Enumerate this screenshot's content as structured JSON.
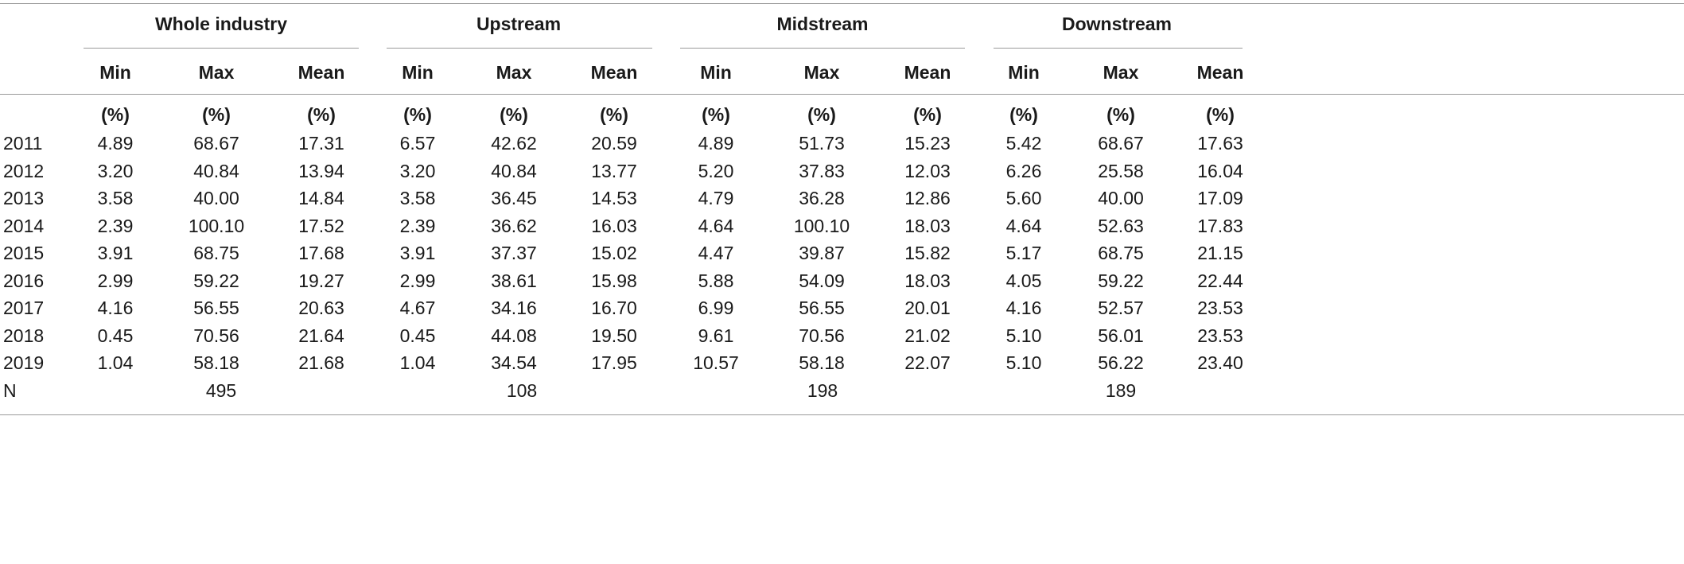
{
  "groups": [
    "Whole industry",
    "Upstream",
    "Midstream",
    "Downstream"
  ],
  "subheaders": [
    "Min",
    "Max",
    "Mean"
  ],
  "unit": "(%)",
  "rows": [
    {
      "label": "2011",
      "values": [
        "4.89",
        "68.67",
        "17.31",
        "6.57",
        "42.62",
        "20.59",
        "4.89",
        "51.73",
        "15.23",
        "5.42",
        "68.67",
        "17.63"
      ]
    },
    {
      "label": "2012",
      "values": [
        "3.20",
        "40.84",
        "13.94",
        "3.20",
        "40.84",
        "13.77",
        "5.20",
        "37.83",
        "12.03",
        "6.26",
        "25.58",
        "16.04"
      ]
    },
    {
      "label": "2013",
      "values": [
        "3.58",
        "40.00",
        "14.84",
        "3.58",
        "36.45",
        "14.53",
        "4.79",
        "36.28",
        "12.86",
        "5.60",
        "40.00",
        "17.09"
      ]
    },
    {
      "label": "2014",
      "values": [
        "2.39",
        "100.10",
        "17.52",
        "2.39",
        "36.62",
        "16.03",
        "4.64",
        "100.10",
        "18.03",
        "4.64",
        "52.63",
        "17.83"
      ]
    },
    {
      "label": "2015",
      "values": [
        "3.91",
        "68.75",
        "17.68",
        "3.91",
        "37.37",
        "15.02",
        "4.47",
        "39.87",
        "15.82",
        "5.17",
        "68.75",
        "21.15"
      ]
    },
    {
      "label": "2016",
      "values": [
        "2.99",
        "59.22",
        "19.27",
        "2.99",
        "38.61",
        "15.98",
        "5.88",
        "54.09",
        "18.03",
        "4.05",
        "59.22",
        "22.44"
      ]
    },
    {
      "label": "2017",
      "values": [
        "4.16",
        "56.55",
        "20.63",
        "4.67",
        "34.16",
        "16.70",
        "6.99",
        "56.55",
        "20.01",
        "4.16",
        "52.57",
        "23.53"
      ]
    },
    {
      "label": "2018",
      "values": [
        "0.45",
        "70.56",
        "21.64",
        "0.45",
        "44.08",
        "19.50",
        "9.61",
        "70.56",
        "21.02",
        "5.10",
        "56.01",
        "23.53"
      ]
    },
    {
      "label": "2019",
      "values": [
        "1.04",
        "58.18",
        "21.68",
        "1.04",
        "34.54",
        "17.95",
        "10.57",
        "58.18",
        "22.07",
        "5.10",
        "56.22",
        "23.40"
      ]
    }
  ],
  "n_row": {
    "label": "N",
    "values": [
      "495",
      "108",
      "198",
      "189"
    ]
  }
}
